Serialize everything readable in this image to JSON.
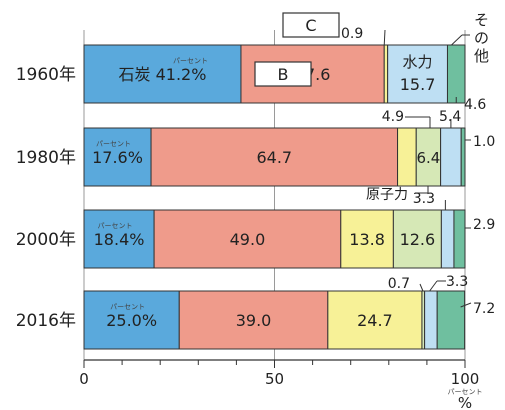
{
  "chart_data": {
    "type": "bar",
    "orientation": "horizontal",
    "stacked": true,
    "title": "",
    "xlabel": "",
    "ylabel": "",
    "xlim": [
      0,
      100
    ],
    "x_ticks": [
      "0",
      "50",
      "100"
    ],
    "x_unit": "%",
    "categories": [
      "1960年",
      "1980年",
      "2000年",
      "2016年"
    ],
    "series": [
      {
        "name": "石炭",
        "color": "#5aa9dc",
        "values": [
          41.2,
          17.6,
          18.4,
          25.0
        ]
      },
      {
        "name": "",
        "color": "#ef9b8b",
        "values": [
          37.6,
          64.7,
          49.0,
          39.0
        ]
      },
      {
        "name": "",
        "color": "#f7f197",
        "values": [
          0.9,
          4.9,
          13.8,
          24.7
        ]
      },
      {
        "name": "原子力",
        "color": "#d6e8b6",
        "values": [
          0.0,
          6.4,
          12.6,
          0.7
        ]
      },
      {
        "name": "水力",
        "color": "#bedff3",
        "values": [
          15.7,
          5.4,
          3.3,
          3.3
        ]
      },
      {
        "name": "その他",
        "color": "#6fbf9f",
        "values": [
          4.6,
          1.0,
          2.9,
          7.2
        ]
      }
    ],
    "segment_labels": [
      [
        "石炭 41.2%",
        "37.6",
        "",
        "",
        "15.7",
        ""
      ],
      [
        "17.6%",
        "64.7",
        "",
        "6.4",
        "",
        ""
      ],
      [
        "18.4%",
        "49.0",
        "13.8",
        "12.6",
        "",
        ""
      ],
      [
        "25.0%",
        "39.0",
        "24.7",
        "",
        "",
        ""
      ]
    ],
    "outside_labels": [
      [
        "0.9",
        "",
        "",
        "",
        "4.6"
      ],
      [
        "4.9",
        "5.4",
        "1.0"
      ],
      [
        "3.3",
        "2.9"
      ],
      [
        "0.7",
        "3.3",
        "7.2"
      ]
    ],
    "small_text": "パーセント",
    "callouts": {
      "box_c": "C",
      "box_b": "B",
      "genshiryoku": "原子力",
      "sono_ta": "その他",
      "suiryoku": "水力"
    },
    "legend": "none"
  }
}
